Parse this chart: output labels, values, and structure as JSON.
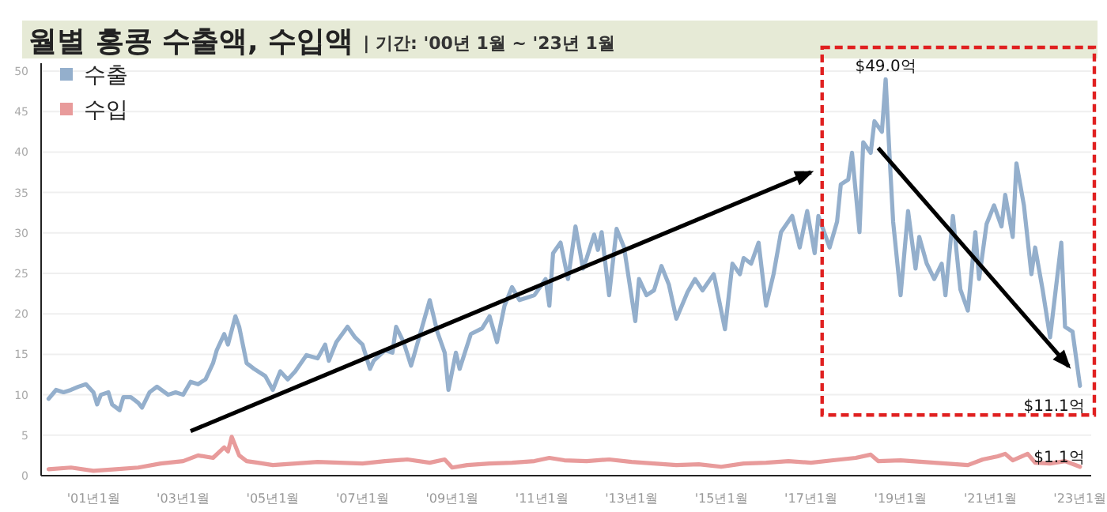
{
  "chart_data": {
    "type": "line",
    "title": "월별 홍콩 수출액, 수입액",
    "subtitle": "| 기간: '00년 1월 ~ '23년 1월",
    "xlim": [
      "1999-11",
      "2023-04"
    ],
    "ylim": [
      0,
      50
    ],
    "yticks": [
      0,
      5,
      10,
      15,
      20,
      25,
      30,
      35,
      40,
      45,
      50
    ],
    "xticks": [
      {
        "value": "2001-01",
        "label": "'01년1월"
      },
      {
        "value": "2003-01",
        "label": "'03년1월"
      },
      {
        "value": "2005-01",
        "label": "'05년1월"
      },
      {
        "value": "2007-01",
        "label": "'07년1월"
      },
      {
        "value": "2009-01",
        "label": "'09년1월"
      },
      {
        "value": "2011-01",
        "label": "'11년1월"
      },
      {
        "value": "2013-01",
        "label": "'13년1월"
      },
      {
        "value": "2015-01",
        "label": "'15년1월"
      },
      {
        "value": "2017-01",
        "label": "'17년1월"
      },
      {
        "value": "2019-01",
        "label": "'19년1월"
      },
      {
        "value": "2021-01",
        "label": "'21년1월"
      },
      {
        "value": "2023-01",
        "label": "'23년1월"
      }
    ],
    "grid": "y",
    "legend": "top left",
    "series": [
      {
        "name": "수출",
        "color": "#94afcc",
        "x": [
          "2000-01",
          "2000-03",
          "2000-05",
          "2000-07",
          "2000-09",
          "2000-11",
          "2001-01",
          "2001-02",
          "2001-03",
          "2001-05",
          "2001-06",
          "2001-08",
          "2001-09",
          "2001-11",
          "2002-01",
          "2002-02",
          "2002-04",
          "2002-06",
          "2002-09",
          "2002-11",
          "2003-01",
          "2003-03",
          "2003-05",
          "2003-07",
          "2003-09",
          "2003-10",
          "2003-12",
          "2004-01",
          "2004-03",
          "2004-04",
          "2004-06",
          "2004-08",
          "2004-11",
          "2005-01",
          "2005-03",
          "2005-05",
          "2005-07",
          "2005-10",
          "2006-01",
          "2006-03",
          "2006-04",
          "2006-06",
          "2006-09",
          "2006-11",
          "2007-01",
          "2007-03",
          "2007-04",
          "2007-07",
          "2007-09",
          "2007-10",
          "2007-12",
          "2008-02",
          "2008-03",
          "2008-07",
          "2008-09",
          "2008-11",
          "2008-12",
          "2009-02",
          "2009-03",
          "2009-06",
          "2009-09",
          "2009-11",
          "2010-01",
          "2010-03",
          "2010-05",
          "2010-07",
          "2010-09",
          "2010-11",
          "2011-02",
          "2011-03",
          "2011-04",
          "2011-06",
          "2011-08",
          "2011-09",
          "2011-10",
          "2011-12",
          "2012-01",
          "2012-03",
          "2012-04",
          "2012-05",
          "2012-07",
          "2012-09",
          "2012-11",
          "2013-02",
          "2013-03",
          "2013-05",
          "2013-07",
          "2013-09",
          "2013-11",
          "2014-01",
          "2014-04",
          "2014-06",
          "2014-08",
          "2014-11",
          "2015-02",
          "2015-04",
          "2015-06",
          "2015-07",
          "2015-09",
          "2015-11",
          "2016-01",
          "2016-03",
          "2016-05",
          "2016-08",
          "2016-10",
          "2016-12",
          "2017-02",
          "2017-03",
          "2017-06",
          "2017-08",
          "2017-09",
          "2017-11",
          "2017-12",
          "2018-02",
          "2018-03",
          "2018-05",
          "2018-06",
          "2018-08",
          "2018-09",
          "2018-10",
          "2018-11",
          "2019-01",
          "2019-03",
          "2019-05",
          "2019-06",
          "2019-08",
          "2019-10",
          "2019-12",
          "2020-01",
          "2020-03",
          "2020-05",
          "2020-07",
          "2020-09",
          "2020-10",
          "2020-12",
          "2021-02",
          "2021-04",
          "2021-05",
          "2021-07",
          "2021-08",
          "2021-10",
          "2021-12",
          "2022-01",
          "2022-03",
          "2022-05",
          "2022-08",
          "2022-09",
          "2022-11",
          "2023-01"
        ],
        "values": [
          9.5,
          10.6,
          10.3,
          10.6,
          11.0,
          11.3,
          10.3,
          8.8,
          10.0,
          10.3,
          8.8,
          8.1,
          9.7,
          9.7,
          9.0,
          8.4,
          10.3,
          11.0,
          10.0,
          10.3,
          10.0,
          11.6,
          11.3,
          11.9,
          13.9,
          15.5,
          17.5,
          16.2,
          19.7,
          18.4,
          13.9,
          13.2,
          12.3,
          10.6,
          12.9,
          11.9,
          12.9,
          14.9,
          14.5,
          16.2,
          14.2,
          16.5,
          18.4,
          17.1,
          16.2,
          13.2,
          14.2,
          15.5,
          15.2,
          18.4,
          16.5,
          13.6,
          15.2,
          21.7,
          17.8,
          15.2,
          10.6,
          15.2,
          13.2,
          17.5,
          18.2,
          19.7,
          16.5,
          21.0,
          23.3,
          21.7,
          22.0,
          22.3,
          24.3,
          21.0,
          27.5,
          28.8,
          24.3,
          27.5,
          30.8,
          25.6,
          26.9,
          29.8,
          27.9,
          30.1,
          22.3,
          30.5,
          28.2,
          19.1,
          24.3,
          22.3,
          22.9,
          25.9,
          23.6,
          19.4,
          22.7,
          24.3,
          22.9,
          24.9,
          18.1,
          26.2,
          24.9,
          26.9,
          26.2,
          28.8,
          21.0,
          24.9,
          30.1,
          32.1,
          28.2,
          32.7,
          27.5,
          32.1,
          28.2,
          31.4,
          36.0,
          36.6,
          39.9,
          30.1,
          41.2,
          39.9,
          43.8,
          42.5,
          49.0,
          39.9,
          31.4,
          22.3,
          32.7,
          25.6,
          29.5,
          26.2,
          24.3,
          26.2,
          22.3,
          32.1,
          23.0,
          20.4,
          30.1,
          24.3,
          31.1,
          33.4,
          30.8,
          34.7,
          29.5,
          38.6,
          33.4,
          24.9,
          28.2,
          23.0,
          17.1,
          28.8,
          18.4,
          17.8,
          11.1
        ]
      },
      {
        "name": "수입",
        "color": "#e89b9b",
        "x": [
          "2000-01",
          "2000-07",
          "2001-01",
          "2001-07",
          "2002-01",
          "2002-07",
          "2003-01",
          "2003-05",
          "2003-09",
          "2003-12",
          "2004-01",
          "2004-02",
          "2004-04",
          "2004-06",
          "2004-09",
          "2005-01",
          "2005-07",
          "2006-01",
          "2006-07",
          "2007-01",
          "2007-07",
          "2008-01",
          "2008-07",
          "2008-11",
          "2009-01",
          "2009-05",
          "2009-11",
          "2010-05",
          "2010-11",
          "2011-03",
          "2011-07",
          "2012-01",
          "2012-07",
          "2013-01",
          "2013-07",
          "2014-01",
          "2014-07",
          "2015-01",
          "2015-07",
          "2016-01",
          "2016-07",
          "2017-01",
          "2017-07",
          "2018-01",
          "2018-05",
          "2018-07",
          "2019-01",
          "2019-07",
          "2020-01",
          "2020-07",
          "2020-11",
          "2021-03",
          "2021-05",
          "2021-07",
          "2021-11",
          "2022-01",
          "2022-05",
          "2022-09",
          "2023-01"
        ],
        "values": [
          0.8,
          1.0,
          0.6,
          0.8,
          1.0,
          1.5,
          1.8,
          2.5,
          2.2,
          3.5,
          3.0,
          4.8,
          2.5,
          1.8,
          1.6,
          1.3,
          1.5,
          1.7,
          1.6,
          1.5,
          1.8,
          2.0,
          1.6,
          2.0,
          1.0,
          1.3,
          1.5,
          1.6,
          1.8,
          2.2,
          1.9,
          1.8,
          2.0,
          1.7,
          1.5,
          1.3,
          1.4,
          1.1,
          1.5,
          1.6,
          1.8,
          1.6,
          1.9,
          2.2,
          2.6,
          1.8,
          1.9,
          1.7,
          1.5,
          1.3,
          2.0,
          2.4,
          2.7,
          1.9,
          2.7,
          1.6,
          1.5,
          1.8,
          1.1
        ]
      }
    ],
    "annotations": [
      {
        "text": "$49.0억",
        "x": "2018-09",
        "y": 49.0
      },
      {
        "text": "$11.1억",
        "x": "2023-01",
        "y": 11.1
      },
      {
        "text": "$1.1억",
        "x": "2023-01",
        "y": 1.1
      }
    ]
  }
}
